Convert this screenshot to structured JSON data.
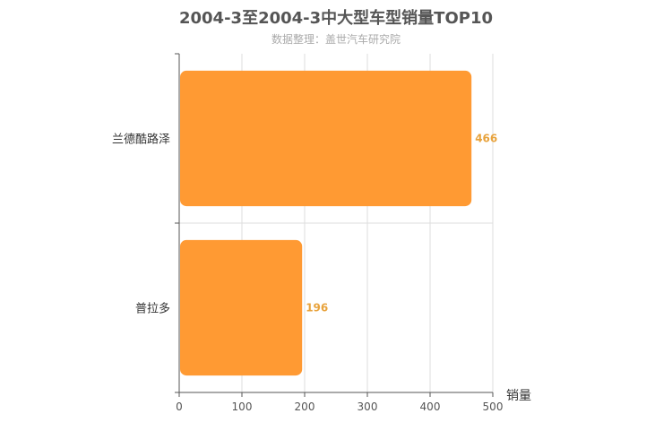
{
  "chart_data": {
    "type": "bar",
    "orientation": "horizontal",
    "title": "2004-3至2004-3中大型车型销量TOP10",
    "subtitle": "数据整理：盖世汽车研究院",
    "categories": [
      "兰德酷路泽",
      "普拉多"
    ],
    "values": [
      466,
      196
    ],
    "xlabel": "销量",
    "ylabel": "",
    "xlim": [
      0,
      500
    ],
    "xticks": [
      "0",
      "100",
      "200",
      "300",
      "400",
      "500"
    ],
    "data_labels": [
      "466",
      "196"
    ],
    "grid": true,
    "bar_color": "#ff9a33",
    "label_color": "#e8a33d"
  }
}
